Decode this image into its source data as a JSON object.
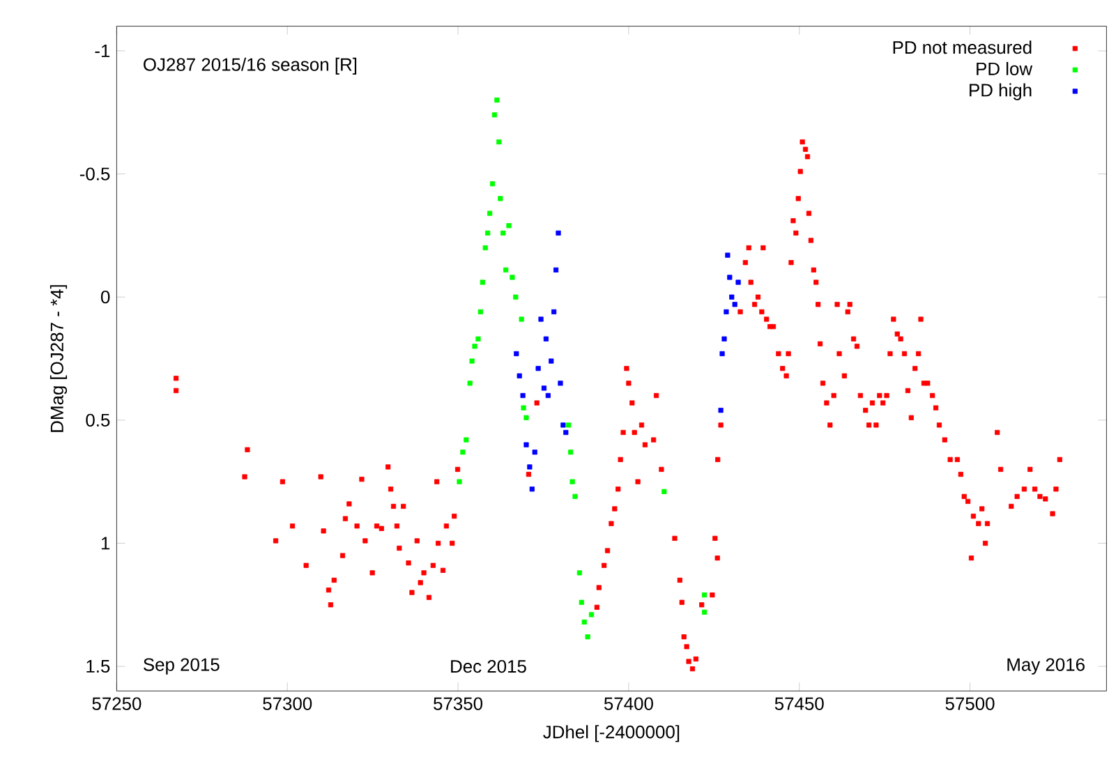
{
  "chart_data": {
    "type": "scatter",
    "title": "OJ287  2015/16 season [R]",
    "xlabel": "JDhel [-2400000]",
    "ylabel": "DMag [OJ287 - *4]",
    "xlim": [
      57250,
      57540
    ],
    "ylim": [
      1.6,
      -1.1
    ],
    "xticks": [
      57250,
      57300,
      57350,
      57400,
      57450,
      57500
    ],
    "yticks": [
      -1,
      -0.5,
      0,
      0.5,
      1,
      1.5
    ],
    "marker": "square",
    "legend": "top right",
    "annotations": [
      "Sep 2015",
      "Dec 2015",
      "May 2016"
    ],
    "series": [
      {
        "name": "PD not measured",
        "color": "#ff0000",
        "x": [
          57267.4,
          57267.4,
          57287.5,
          57288.3,
          57296.6,
          57298.6,
          57301.5,
          57305.5,
          57309.8,
          57310.6,
          57312.1,
          57312.7,
          57313.7,
          57316.2,
          57317,
          57318.1,
          57320.4,
          57321.8,
          57322.8,
          57324.9,
          57326.2,
          57327.6,
          57329.5,
          57330.3,
          57331.1,
          57332.1,
          57332.8,
          57334,
          57335.5,
          57336.5,
          57338,
          57339,
          57340,
          57341.5,
          57342.7,
          57343.8,
          57344.2,
          57345.6,
          57346.6,
          57348.3,
          57348.9,
          57349.9,
          57370.7,
          57373.1,
          57390.7,
          57391.3,
          57392.8,
          57393.8,
          57394.9,
          57395.9,
          57396.9,
          57397.6,
          57398.4,
          57399.4,
          57400,
          57401,
          57401.7,
          57402.7,
          57403.8,
          57404.8,
          57407.3,
          57408.1,
          57409.6,
          57413.5,
          57415,
          57415.6,
          57416.2,
          57417,
          57417.6,
          57418.7,
          57419.7,
          57421.4,
          57424.5,
          57425.3,
          57426,
          57426.1,
          57427,
          57432.7,
          57434.2,
          57435.2,
          57435.8,
          57436.9,
          57437.9,
          57439,
          57439.4,
          57440.4,
          57441.4,
          57442.4,
          57443.9,
          57445.1,
          57446.2,
          57446.8,
          57447.6,
          57448.2,
          57449,
          57449.7,
          57450.3,
          57450.9,
          57451.8,
          57452.4,
          57452.8,
          57453.4,
          57454.2,
          57454.9,
          57455.5,
          57456.1,
          57456.9,
          57458,
          57459,
          57460.1,
          57461.1,
          57461.7,
          57463.2,
          57464.2,
          57464.8,
          57465.9,
          57466.9,
          57467.9,
          57469.4,
          57470.4,
          57471.4,
          57472.5,
          57473.5,
          57474.5,
          57475.6,
          57476.6,
          57477.6,
          57478.7,
          57479.7,
          57480.8,
          57481.8,
          57482.8,
          57483.9,
          57484.9,
          57485.6,
          57486.5,
          57487.6,
          57489,
          57490,
          57491,
          57492.6,
          57494.2,
          57496.3,
          57497.3,
          57498.3,
          57499.4,
          57500.4,
          57501,
          57502.5,
          57503.5,
          57504.5,
          57505.1,
          57508,
          57509,
          57512.1,
          57513.8,
          57515.9,
          57517.6,
          57519,
          57520.5,
          57522.1,
          57524.2,
          57525.2,
          57526.3
        ],
        "values": [
          0.33,
          0.38,
          0.73,
          0.62,
          0.99,
          0.75,
          0.93,
          1.09,
          0.73,
          0.95,
          1.19,
          1.25,
          1.15,
          1.05,
          0.9,
          0.84,
          0.93,
          0.74,
          0.99,
          1.12,
          0.93,
          0.94,
          0.69,
          0.78,
          0.85,
          0.93,
          1.02,
          0.85,
          1.08,
          1.2,
          0.99,
          1.16,
          1.12,
          1.22,
          1.09,
          0.75,
          1.0,
          1.11,
          0.93,
          1.0,
          0.89,
          0.7,
          0.72,
          0.43,
          1.26,
          1.18,
          1.09,
          1.03,
          0.92,
          0.86,
          0.78,
          0.66,
          0.55,
          0.29,
          0.35,
          0.43,
          0.55,
          0.75,
          0.52,
          0.6,
          0.58,
          0.4,
          0.7,
          0.98,
          1.15,
          1.24,
          1.38,
          1.42,
          1.48,
          1.51,
          1.47,
          1.25,
          1.21,
          0.98,
          1.06,
          0.66,
          0.52,
          0.06,
          -0.14,
          -0.2,
          -0.06,
          0.03,
          0.0,
          0.06,
          -0.2,
          0.09,
          0.12,
          0.12,
          0.23,
          0.29,
          0.32,
          0.23,
          -0.14,
          -0.31,
          -0.26,
          -0.4,
          -0.51,
          -0.63,
          -0.6,
          -0.57,
          -0.34,
          -0.23,
          -0.11,
          -0.06,
          0.03,
          0.19,
          0.35,
          0.43,
          0.52,
          0.4,
          0.03,
          0.23,
          0.32,
          0.06,
          0.03,
          0.17,
          0.2,
          0.4,
          0.46,
          0.52,
          0.43,
          0.52,
          0.4,
          0.43,
          0.4,
          0.23,
          0.09,
          0.15,
          0.17,
          0.23,
          0.38,
          0.49,
          0.29,
          0.23,
          0.09,
          0.35,
          0.35,
          0.4,
          0.45,
          0.52,
          0.58,
          0.66,
          0.66,
          0.72,
          0.81,
          0.83,
          1.06,
          0.89,
          0.92,
          0.86,
          1.0,
          0.92,
          0.55,
          0.7,
          0.85,
          0.81,
          0.78,
          0.7,
          0.78,
          0.81,
          0.82,
          0.88,
          0.78,
          0.66
        ]
      },
      {
        "name": "PD low",
        "color": "#00ff00",
        "x": [
          57350.4,
          57351.4,
          57352.4,
          57353.5,
          57354.1,
          57354.9,
          57355.9,
          57356.6,
          57357.2,
          57358,
          57358.7,
          57359.3,
          57360.1,
          57360.7,
          57361.4,
          57362,
          57362.4,
          57363.2,
          57364,
          57364.9,
          57365.9,
          57366.9,
          57368.6,
          57369.2,
          57370,
          57382.4,
          57383,
          57383.5,
          57384.3,
          57385.6,
          57386.2,
          57387,
          57388,
          57389.1,
          57410.4,
          57422.2,
          57422.2
        ],
        "values": [
          0.75,
          0.63,
          0.58,
          0.35,
          0.26,
          0.2,
          0.17,
          0.06,
          -0.06,
          -0.2,
          -0.26,
          -0.34,
          -0.46,
          -0.74,
          -0.8,
          -0.63,
          -0.4,
          -0.26,
          -0.11,
          -0.29,
          -0.08,
          0.0,
          0.09,
          0.45,
          0.49,
          0.52,
          0.63,
          0.75,
          0.81,
          1.12,
          1.24,
          1.32,
          1.38,
          1.29,
          0.79,
          1.21,
          1.28
        ]
      },
      {
        "name": "PD high",
        "color": "#0000ff",
        "x": [
          57367.1,
          57368,
          57369,
          57370,
          57371,
          57371.7,
          57372.5,
          57373.5,
          57374.3,
          57375.2,
          57375.8,
          57376.4,
          57377.3,
          57378.1,
          57378.7,
          57379.4,
          57380,
          57380.8,
          57381.6,
          57427,
          57427.4,
          57428,
          57428.6,
          57429,
          57429.6,
          57430.2,
          57431.1,
          57432.1
        ],
        "values": [
          0.23,
          0.32,
          0.4,
          0.6,
          0.69,
          0.78,
          0.63,
          0.29,
          0.09,
          0.37,
          0.17,
          0.4,
          0.26,
          0.06,
          -0.11,
          -0.26,
          0.35,
          0.52,
          0.55,
          0.46,
          0.23,
          0.17,
          0.06,
          -0.17,
          -0.08,
          0.0,
          0.03,
          -0.06
        ]
      }
    ]
  }
}
